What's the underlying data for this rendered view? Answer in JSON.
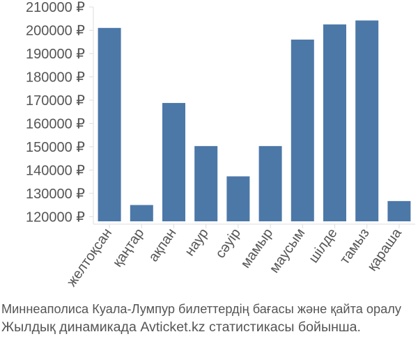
{
  "chart_data": {
    "type": "bar",
    "title": "",
    "xlabel": "",
    "ylabel": "",
    "categories": [
      "желтоқсан",
      "қаңтар",
      "ақпан",
      "наур",
      "сәуір",
      "мамыр",
      "маусым",
      "шілде",
      "тамыз",
      "қараша"
    ],
    "values": [
      201000,
      125000,
      168800,
      150300,
      137300,
      150300,
      196000,
      202500,
      204200,
      126700
    ],
    "ylim": [
      118000,
      210000
    ],
    "yticks": [
      120000,
      130000,
      140000,
      150000,
      160000,
      170000,
      180000,
      190000,
      200000,
      210000
    ],
    "ytick_labels": [
      "120000 ₽",
      "130000 ₽",
      "140000 ₽",
      "150000 ₽",
      "160000 ₽",
      "170000 ₽",
      "180000 ₽",
      "190000 ₽",
      "200000 ₽",
      "210000 ₽"
    ],
    "grid": false,
    "bar_color": "#4c78a8",
    "axis_color": "#dddddd",
    "text_color": "#555555"
  },
  "caption": {
    "line1": "Миннеаполиса Куала-Лумпур билеттердің бағасы және қайта оралу",
    "line2": "Жылдық динамикада Avticket.kz статистикасы бойынша."
  }
}
